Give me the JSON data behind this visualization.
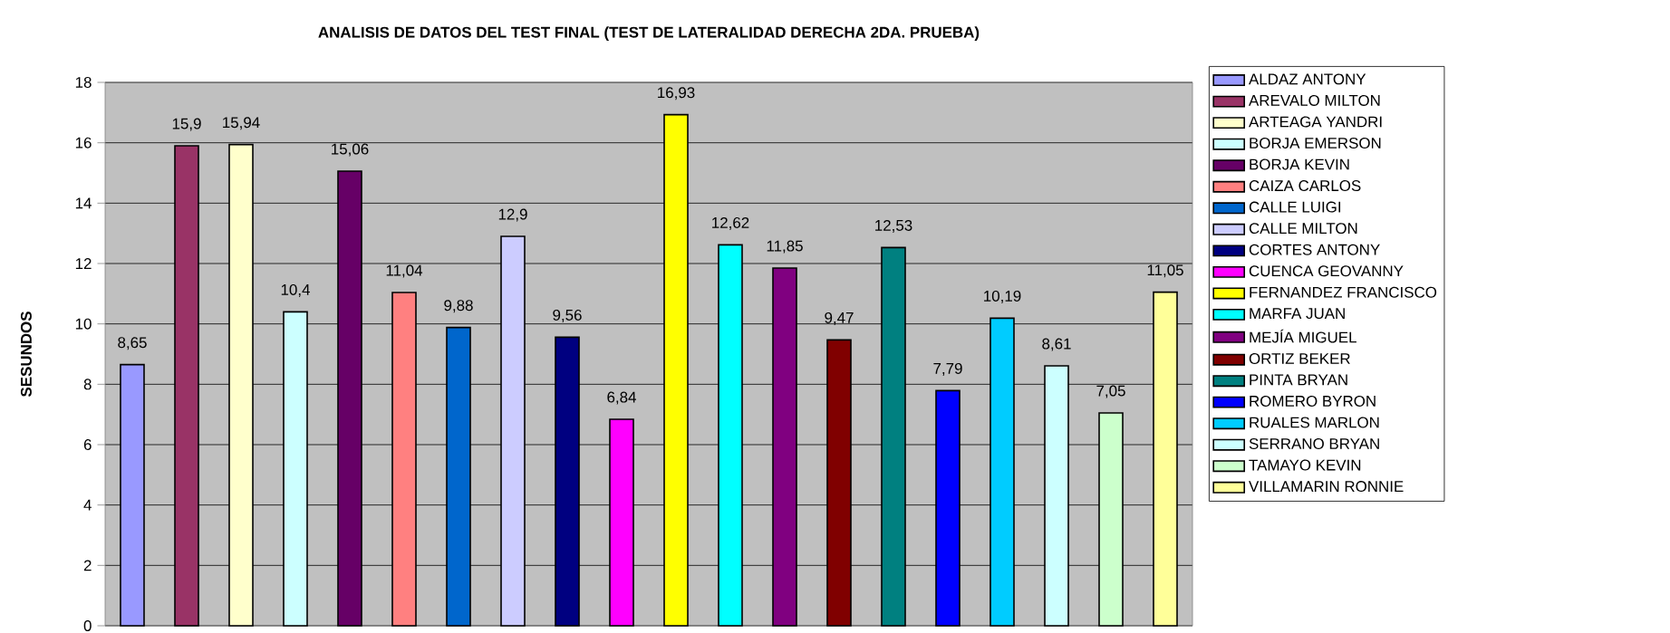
{
  "chart_data": {
    "type": "bar",
    "title": "ANALISIS DE DATOS DEL TEST FINAL (TEST DE LATERALIDAD  DERECHA 2DA. PRUEBA)",
    "ylabel": "SESUNDOS",
    "categories": [
      null,
      null,
      null,
      null,
      null,
      null,
      null,
      null,
      null,
      null,
      null,
      null,
      null,
      null,
      null,
      null,
      null,
      null,
      null,
      null
    ],
    "ylim": [
      0,
      18
    ],
    "yticks": [
      0,
      2,
      4,
      6,
      8,
      10,
      12,
      14,
      16,
      18
    ],
    "grid": "y",
    "legend": "right",
    "tick_labels": "y",
    "series": [
      {
        "name": "ALDAZ ANTONY",
        "color": "#9999ff",
        "values": [
          8.65,
          null,
          null,
          null,
          null,
          null,
          null,
          null,
          null,
          null,
          null,
          null,
          null,
          null,
          null,
          null,
          null,
          null,
          null,
          null
        ],
        "value_labels": [
          "8,65",
          null,
          null,
          null,
          null,
          null,
          null,
          null,
          null,
          null,
          null,
          null,
          null,
          null,
          null,
          null,
          null,
          null,
          null,
          null
        ]
      },
      {
        "name": "AREVALO MILTON",
        "color": "#993366",
        "values": [
          null,
          15.9,
          null,
          null,
          null,
          null,
          null,
          null,
          null,
          null,
          null,
          null,
          null,
          null,
          null,
          null,
          null,
          null,
          null,
          null
        ],
        "value_labels": [
          null,
          "15,9",
          null,
          null,
          null,
          null,
          null,
          null,
          null,
          null,
          null,
          null,
          null,
          null,
          null,
          null,
          null,
          null,
          null,
          null
        ]
      },
      {
        "name": "ARTEAGA YANDRI",
        "color": "#ffffcc",
        "values": [
          null,
          null,
          15.94,
          null,
          null,
          null,
          null,
          null,
          null,
          null,
          null,
          null,
          null,
          null,
          null,
          null,
          null,
          null,
          null,
          null
        ],
        "value_labels": [
          null,
          null,
          "15,94",
          null,
          null,
          null,
          null,
          null,
          null,
          null,
          null,
          null,
          null,
          null,
          null,
          null,
          null,
          null,
          null,
          null
        ]
      },
      {
        "name": "BORJA EMERSON",
        "color": "#ccffff",
        "values": [
          null,
          null,
          null,
          10.4,
          null,
          null,
          null,
          null,
          null,
          null,
          null,
          null,
          null,
          null,
          null,
          null,
          null,
          null,
          null,
          null
        ],
        "value_labels": [
          null,
          null,
          null,
          "10,4",
          null,
          null,
          null,
          null,
          null,
          null,
          null,
          null,
          null,
          null,
          null,
          null,
          null,
          null,
          null,
          null
        ]
      },
      {
        "name": "BORJA KEVIN",
        "color": "#660066",
        "values": [
          null,
          null,
          null,
          null,
          15.06,
          null,
          null,
          null,
          null,
          null,
          null,
          null,
          null,
          null,
          null,
          null,
          null,
          null,
          null,
          null
        ],
        "value_labels": [
          null,
          null,
          null,
          null,
          "15,06",
          null,
          null,
          null,
          null,
          null,
          null,
          null,
          null,
          null,
          null,
          null,
          null,
          null,
          null,
          null
        ]
      },
      {
        "name": "CAIZA CARLOS",
        "color": "#ff8080",
        "values": [
          null,
          null,
          null,
          null,
          null,
          11.04,
          null,
          null,
          null,
          null,
          null,
          null,
          null,
          null,
          null,
          null,
          null,
          null,
          null,
          null
        ],
        "value_labels": [
          null,
          null,
          null,
          null,
          null,
          "11,04",
          null,
          null,
          null,
          null,
          null,
          null,
          null,
          null,
          null,
          null,
          null,
          null,
          null,
          null
        ]
      },
      {
        "name": "CALLE LUIGI",
        "color": "#0066cc",
        "values": [
          null,
          null,
          null,
          null,
          null,
          null,
          9.88,
          null,
          null,
          null,
          null,
          null,
          null,
          null,
          null,
          null,
          null,
          null,
          null,
          null
        ],
        "value_labels": [
          null,
          null,
          null,
          null,
          null,
          null,
          "9,88",
          null,
          null,
          null,
          null,
          null,
          null,
          null,
          null,
          null,
          null,
          null,
          null,
          null
        ]
      },
      {
        "name": "CALLE MILTON",
        "color": "#ccccff",
        "values": [
          null,
          null,
          null,
          null,
          null,
          null,
          null,
          12.9,
          null,
          null,
          null,
          null,
          null,
          null,
          null,
          null,
          null,
          null,
          null,
          null
        ],
        "value_labels": [
          null,
          null,
          null,
          null,
          null,
          null,
          null,
          "12,9",
          null,
          null,
          null,
          null,
          null,
          null,
          null,
          null,
          null,
          null,
          null,
          null
        ]
      },
      {
        "name": "CORTES ANTONY",
        "color": "#000080",
        "values": [
          null,
          null,
          null,
          null,
          null,
          null,
          null,
          null,
          9.56,
          null,
          null,
          null,
          null,
          null,
          null,
          null,
          null,
          null,
          null,
          null
        ],
        "value_labels": [
          null,
          null,
          null,
          null,
          null,
          null,
          null,
          null,
          "9,56",
          null,
          null,
          null,
          null,
          null,
          null,
          null,
          null,
          null,
          null,
          null
        ]
      },
      {
        "name": "CUENCA GEOVANNY",
        "color": "#ff00ff",
        "values": [
          null,
          null,
          null,
          null,
          null,
          null,
          null,
          null,
          null,
          6.84,
          null,
          null,
          null,
          null,
          null,
          null,
          null,
          null,
          null,
          null
        ],
        "value_labels": [
          null,
          null,
          null,
          null,
          null,
          null,
          null,
          null,
          null,
          "6,84",
          null,
          null,
          null,
          null,
          null,
          null,
          null,
          null,
          null,
          null
        ]
      },
      {
        "name": "FERNANDEZ FRANCISCO",
        "color": "#ffff00",
        "values": [
          null,
          null,
          null,
          null,
          null,
          null,
          null,
          null,
          null,
          null,
          16.93,
          null,
          null,
          null,
          null,
          null,
          null,
          null,
          null,
          null
        ],
        "value_labels": [
          null,
          null,
          null,
          null,
          null,
          null,
          null,
          null,
          null,
          null,
          "16,93",
          null,
          null,
          null,
          null,
          null,
          null,
          null,
          null,
          null
        ]
      },
      {
        "name": "MARFA JUAN",
        "color": "#00ffff",
        "values": [
          null,
          null,
          null,
          null,
          null,
          null,
          null,
          null,
          null,
          null,
          null,
          12.62,
          null,
          null,
          null,
          null,
          null,
          null,
          null,
          null
        ],
        "value_labels": [
          null,
          null,
          null,
          null,
          null,
          null,
          null,
          null,
          null,
          null,
          null,
          "12,62",
          null,
          null,
          null,
          null,
          null,
          null,
          null,
          null
        ]
      },
      {
        "name": "MEJÍA MIGUEL",
        "color": "#800080",
        "values": [
          null,
          null,
          null,
          null,
          null,
          null,
          null,
          null,
          null,
          null,
          null,
          null,
          11.85,
          null,
          null,
          null,
          null,
          null,
          null,
          null
        ],
        "value_labels": [
          null,
          null,
          null,
          null,
          null,
          null,
          null,
          null,
          null,
          null,
          null,
          null,
          "11,85",
          null,
          null,
          null,
          null,
          null,
          null,
          null
        ]
      },
      {
        "name": "ORTIZ BEKER",
        "color": "#800000",
        "values": [
          null,
          null,
          null,
          null,
          null,
          null,
          null,
          null,
          null,
          null,
          null,
          null,
          null,
          9.47,
          null,
          null,
          null,
          null,
          null,
          null
        ],
        "value_labels": [
          null,
          null,
          null,
          null,
          null,
          null,
          null,
          null,
          null,
          null,
          null,
          null,
          null,
          "9,47",
          null,
          null,
          null,
          null,
          null,
          null
        ]
      },
      {
        "name": "PINTA BRYAN",
        "color": "#008080",
        "values": [
          null,
          null,
          null,
          null,
          null,
          null,
          null,
          null,
          null,
          null,
          null,
          null,
          null,
          null,
          12.53,
          null,
          null,
          null,
          null,
          null
        ],
        "value_labels": [
          null,
          null,
          null,
          null,
          null,
          null,
          null,
          null,
          null,
          null,
          null,
          null,
          null,
          null,
          "12,53",
          null,
          null,
          null,
          null,
          null
        ]
      },
      {
        "name": "ROMERO BYRON",
        "color": "#0000ff",
        "values": [
          null,
          null,
          null,
          null,
          null,
          null,
          null,
          null,
          null,
          null,
          null,
          null,
          null,
          null,
          null,
          7.79,
          null,
          null,
          null,
          null
        ],
        "value_labels": [
          null,
          null,
          null,
          null,
          null,
          null,
          null,
          null,
          null,
          null,
          null,
          null,
          null,
          null,
          null,
          "7,79",
          null,
          null,
          null,
          null
        ]
      },
      {
        "name": "RUALES MARLON",
        "color": "#00ccff",
        "values": [
          null,
          null,
          null,
          null,
          null,
          null,
          null,
          null,
          null,
          null,
          null,
          null,
          null,
          null,
          null,
          null,
          10.19,
          null,
          null,
          null
        ],
        "value_labels": [
          null,
          null,
          null,
          null,
          null,
          null,
          null,
          null,
          null,
          null,
          null,
          null,
          null,
          null,
          null,
          null,
          "10,19",
          null,
          null,
          null
        ]
      },
      {
        "name": "SERRANO BRYAN",
        "color": "#ccffff",
        "values": [
          null,
          null,
          null,
          null,
          null,
          null,
          null,
          null,
          null,
          null,
          null,
          null,
          null,
          null,
          null,
          null,
          null,
          8.61,
          null,
          null
        ],
        "value_labels": [
          null,
          null,
          null,
          null,
          null,
          null,
          null,
          null,
          null,
          null,
          null,
          null,
          null,
          null,
          null,
          null,
          null,
          "8,61",
          null,
          null
        ]
      },
      {
        "name": "TAMAYO KEVIN",
        "color": "#ccffcc",
        "values": [
          null,
          null,
          null,
          null,
          null,
          null,
          null,
          null,
          null,
          null,
          null,
          null,
          null,
          null,
          null,
          null,
          null,
          null,
          7.05,
          null
        ],
        "value_labels": [
          null,
          null,
          null,
          null,
          null,
          null,
          null,
          null,
          null,
          null,
          null,
          null,
          null,
          null,
          null,
          null,
          null,
          null,
          "7,05",
          null
        ]
      },
      {
        "name": "VILLAMARIN RONNIE",
        "color": "#ffff99",
        "values": [
          null,
          null,
          null,
          null,
          null,
          null,
          null,
          null,
          null,
          null,
          null,
          null,
          null,
          null,
          null,
          null,
          null,
          null,
          null,
          11.05
        ],
        "value_labels": [
          null,
          null,
          null,
          null,
          null,
          null,
          null,
          null,
          null,
          null,
          null,
          null,
          null,
          null,
          null,
          null,
          null,
          null,
          null,
          "11,05"
        ]
      }
    ]
  }
}
